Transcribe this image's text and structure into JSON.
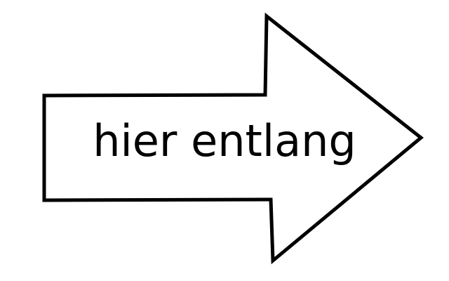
{
  "arrow": {
    "label": "hier entlang",
    "direction": "right",
    "fill_color": "#ffffff",
    "stroke_color": "#000000",
    "text_color": "#000000"
  }
}
